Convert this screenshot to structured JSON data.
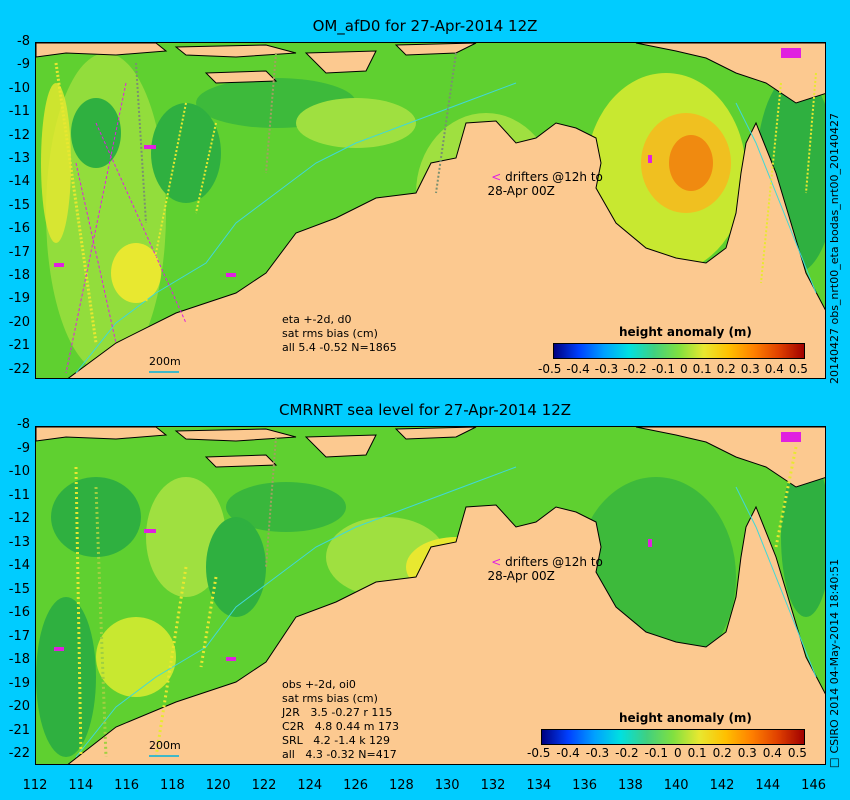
{
  "top": {
    "title": "OM_afD0 for 27-Apr-2014 12Z",
    "annotation": [
      "eta +-2d, d0",
      "sat rms bias (cm)",
      "all 5.4 -0.52 N=1865"
    ],
    "drifters": [
      "drifters @12h to",
      "28-Apr 00Z"
    ],
    "scale_label": "200m",
    "side_label": "20140427 obs_nrt00_eta          bodas_nrt00_20140427"
  },
  "bottom": {
    "title": "CMRNRT sea level  for 27-Apr-2014 12Z",
    "annotation": [
      "obs +-2d, oi0",
      "sat rms bias (cm)",
      "J2R   3.5 -0.27 r 115",
      "C2R   4.8 0.44 m 173",
      "SRL   4.2 -1.4 k 129",
      "all   4.3 -0.32 N=417"
    ],
    "drifters": [
      "drifters @12h to",
      "28-Apr 00Z"
    ],
    "scale_label": "200m",
    "side_label": "□ CSIRO 2014   04-May-2014 18:40:51"
  },
  "colorbar": {
    "title": "height anomaly (m)",
    "ticks": [
      "-0.5",
      "-0.4",
      "-0.3",
      "-0.2",
      "-0.1",
      "0",
      "0.1",
      "0.2",
      "0.3",
      "0.4",
      "0.5"
    ]
  },
  "y_ticks": [
    "-8",
    "-9",
    "-10",
    "-11",
    "-12",
    "-13",
    "-14",
    "-15",
    "-16",
    "-17",
    "-18",
    "-19",
    "-20",
    "-21",
    "-22"
  ],
  "x_ticks": [
    "112",
    "114",
    "116",
    "118",
    "120",
    "122",
    "124",
    "126",
    "128",
    "130",
    "132",
    "134",
    "136",
    "138",
    "140",
    "142",
    "144",
    "146"
  ],
  "colors": {
    "background": "#00ccff",
    "land": "#fcc990",
    "ocean_base": "#5fd030",
    "ocean_light": "#9fe040",
    "ocean_dark": "#2fb040",
    "anomaly_high": "#f08a10",
    "anomaly_yellow": "#e8e830",
    "track_magenta": "#e020e0",
    "isobath": "#40d8d8"
  }
}
